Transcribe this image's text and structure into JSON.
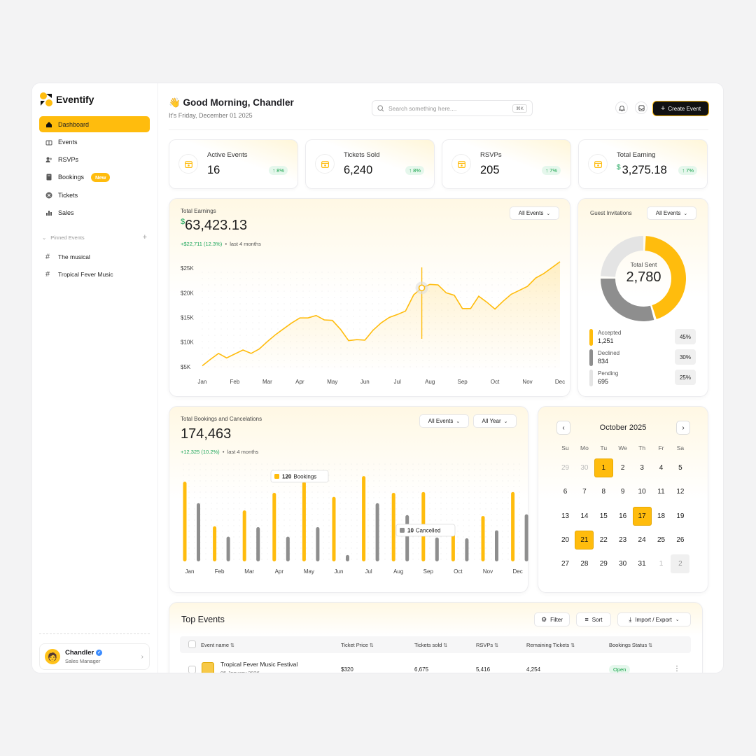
{
  "app": {
    "name": "Eventify"
  },
  "sidebar": {
    "nav": [
      {
        "label": "Dashboard",
        "icon": "home-icon",
        "active": true
      },
      {
        "label": "Events",
        "icon": "gift-icon"
      },
      {
        "label": "RSVPs",
        "icon": "users-icon"
      },
      {
        "label": "Bookings",
        "icon": "book-icon",
        "badge": "New"
      },
      {
        "label": "Tickets",
        "icon": "ticket-icon"
      },
      {
        "label": "Sales",
        "icon": "bar-chart-icon"
      }
    ],
    "pinned_title": "Pinned Events",
    "pinned": [
      {
        "label": "The musical"
      },
      {
        "label": "Tropical Fever Music"
      }
    ],
    "user": {
      "name": "Chandler",
      "role": "Sales Manager"
    }
  },
  "header": {
    "greeting": "👋 Good Morning, Chandler",
    "date": "It's Friday, December 01 2025",
    "search_placeholder": "Search something here....",
    "search_shortcut": "⌘K",
    "create_label": "Create Event"
  },
  "stats": [
    {
      "label": "Active Events",
      "value": "16",
      "change": "8%"
    },
    {
      "label": "Tickets Sold",
      "value": "6,240",
      "change": "8%"
    },
    {
      "label": "RSVPs",
      "value": "205",
      "change": "7%"
    },
    {
      "label": "Total Earning",
      "currency": "$",
      "value": "3,275.18",
      "change": "7%"
    }
  ],
  "earnings": {
    "label": "Total Earnings",
    "currency": "$",
    "value": "63,423.13",
    "change": "+$22,711 (12.3%)",
    "period": "last 4 months",
    "filter": "All Events"
  },
  "invitations": {
    "label": "Guest Invitations",
    "filter": "All Events",
    "center_label": "Total Sent",
    "center_value": "2,780",
    "legend": [
      {
        "name": "Accepted",
        "value": "1,251",
        "pct": "45%",
        "color": "#ffbc0d"
      },
      {
        "name": "Declined",
        "value": "834",
        "pct": "30%",
        "color": "#8e8e8e"
      },
      {
        "name": "Pending",
        "value": "695",
        "pct": "25%",
        "color": "#e4e4e4"
      }
    ]
  },
  "bookings": {
    "label": "Total Bookings and Cancelations",
    "value": "174,463",
    "change": "+12,325 (10.2%)",
    "period": "last 4 months",
    "filter1": "All Events",
    "filter2": "All Year",
    "tooltip_bookings": {
      "value": "120",
      "label": "Bookings"
    },
    "tooltip_cancelled": {
      "value": "10",
      "label": "Cancelled"
    }
  },
  "calendar": {
    "title": "October 2025",
    "dow": [
      "Su",
      "Mo",
      "Tu",
      "We",
      "Th",
      "Fr",
      "Sa"
    ],
    "weeks": [
      [
        "29",
        "30",
        "1",
        "2",
        "3",
        "4",
        "5"
      ],
      [
        "6",
        "7",
        "8",
        "9",
        "10",
        "11",
        "12"
      ],
      [
        "13",
        "14",
        "15",
        "16",
        "17",
        "18",
        "19"
      ],
      [
        "20",
        "21",
        "22",
        "23",
        "24",
        "25",
        "26"
      ],
      [
        "27",
        "28",
        "29",
        "30",
        "31",
        "1",
        "2"
      ]
    ],
    "selected": [
      "1",
      "17",
      "21"
    ]
  },
  "top_events": {
    "title": "Top Events",
    "filter_label": "Filter",
    "sort_label": "Sort",
    "import_label": "Import / Export",
    "columns": [
      "Event name",
      "Ticket Price",
      "Tickets sold",
      "RSVPs",
      "Remaining Tickets",
      "Bookings Status"
    ],
    "rows": [
      {
        "name": "Tropical Fever Music Festival",
        "date": "05 January 2026",
        "price": "$320",
        "sold": "6,675",
        "rsvps": "5,416",
        "remaining": "4,254",
        "status": "Open"
      }
    ]
  },
  "chart_data": [
    {
      "type": "area",
      "ylabel": "",
      "ylim": [
        4000,
        27000
      ],
      "y_ticks": [
        "$5K",
        "$10K",
        "$15K",
        "$20K",
        "$25K"
      ],
      "y_tick_values": [
        5000,
        10000,
        15000,
        20000,
        25000
      ],
      "categories": [
        "Jan",
        "Feb",
        "Mar",
        "Apr",
        "May",
        "Jun",
        "Jul",
        "Aug",
        "Sep",
        "Oct",
        "Nov",
        "Dec"
      ],
      "x": [
        0,
        0.25,
        0.5,
        0.75,
        1,
        1.25,
        1.5,
        1.75,
        2,
        2.25,
        2.5,
        2.75,
        3,
        3.25,
        3.5,
        3.75,
        4,
        4.25,
        4.5,
        4.75,
        5,
        5.25,
        5.5,
        5.75,
        6,
        6.25,
        6.5,
        6.75,
        7,
        7.25,
        7.5,
        7.75,
        8,
        8.25,
        8.5,
        8.75,
        9,
        9.25,
        9.5,
        9.75,
        10,
        10.25,
        10.5,
        10.75,
        11
      ],
      "values": [
        5200,
        6500,
        7700,
        6800,
        7600,
        8400,
        7700,
        8600,
        10100,
        11500,
        12700,
        13900,
        14900,
        14900,
        15400,
        14500,
        14400,
        12600,
        10300,
        10500,
        10400,
        12400,
        13900,
        15000,
        15600,
        16300,
        19600,
        21000,
        21700,
        21600,
        20000,
        19500,
        16800,
        16800,
        19300,
        18100,
        16700,
        18300,
        19700,
        20500,
        21300,
        23000,
        23900,
        25100,
        26300
      ],
      "highlight_index": 27
    },
    {
      "type": "bar",
      "categories": [
        "Jan",
        "Feb",
        "Mar",
        "Apr",
        "May",
        "Jun",
        "Jul",
        "Aug",
        "Sep",
        "Oct",
        "Nov",
        "Dec"
      ],
      "series": [
        {
          "name": "Bookings",
          "values": [
            100,
            44,
            64,
            86,
            100,
            81,
            107,
            86,
            87,
            36,
            57,
            87
          ],
          "color": "#ffbc0d"
        },
        {
          "name": "Cancelled",
          "values": [
            73,
            31,
            43,
            31,
            43,
            8,
            73,
            58,
            30,
            29,
            39,
            59
          ],
          "color": "#8e8e8e"
        }
      ],
      "ylim": [
        0,
        115
      ]
    },
    {
      "type": "pie",
      "categories": [
        "Accepted",
        "Declined",
        "Pending"
      ],
      "values": [
        45,
        30,
        25
      ]
    }
  ]
}
